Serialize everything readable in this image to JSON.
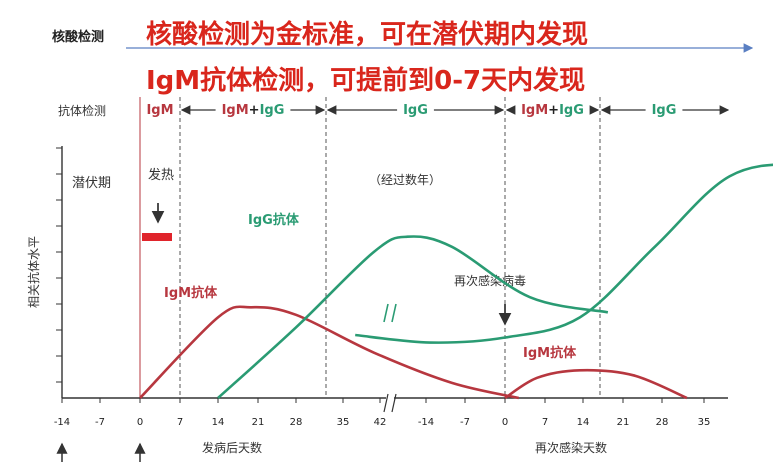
{
  "header": {
    "nucleic_label": "核酸检测",
    "title": "核酸检测为金标准，可在潜伏期内发现",
    "subtitle": "IgM抗体检测，可提前到0-7天内发现"
  },
  "colors": {
    "igm": "#b7373f",
    "igg": "#2a9b73",
    "title": "#d9261c",
    "axis": "#333333",
    "fever_bar": "#e0242b"
  },
  "chart_data": {
    "type": "line",
    "ylabel": "相关抗体水平",
    "row_label": "抗体检测",
    "phases": [
      {
        "label_parts": [
          {
            "text": "IgM",
            "series": "IgM"
          }
        ]
      },
      {
        "label_parts": [
          {
            "text": "IgM",
            "series": "IgM"
          },
          {
            "text": "+",
            "series": "none"
          },
          {
            "text": "IgG",
            "series": "IgG"
          }
        ]
      },
      {
        "label_parts": [
          {
            "text": "IgG",
            "series": "IgG"
          }
        ]
      },
      {
        "label_parts": [
          {
            "text": "IgM",
            "series": "IgM"
          },
          {
            "text": "+",
            "series": "none"
          },
          {
            "text": "IgG",
            "series": "IgG"
          }
        ]
      },
      {
        "label_parts": [
          {
            "text": "IgG",
            "series": "IgG"
          }
        ]
      }
    ],
    "annotations": {
      "latent": "潜伏期",
      "fever": "发热",
      "years": "（经过数年）",
      "reinfect": "再次感染病毒"
    },
    "series_labels": {
      "igg": "IgG抗体",
      "igm": "IgM抗体",
      "igm_second": "IgM抗体"
    },
    "x_ticks": [
      "-14",
      "-7",
      "0",
      "7",
      "14",
      "21",
      "28",
      "35",
      "42",
      "-14",
      "-7",
      "0",
      "7",
      "14",
      "21",
      "28",
      "35"
    ],
    "x_label_first": "发病后天数",
    "x_label_second": "再次感染天数",
    "series": [
      {
        "name": "IgM",
        "segment": "first",
        "points": [
          [
            0,
            0
          ],
          [
            7,
            0.32
          ],
          [
            10,
            0.36
          ],
          [
            14,
            0.33
          ],
          [
            21,
            0.18
          ],
          [
            28,
            0.06
          ],
          [
            34,
            0.0
          ]
        ]
      },
      {
        "name": "IgG",
        "segment": "first",
        "points": [
          [
            7,
            0
          ],
          [
            14,
            0.28
          ],
          [
            21,
            0.58
          ],
          [
            24,
            0.64
          ],
          [
            28,
            0.6
          ],
          [
            35,
            0.4
          ],
          [
            42,
            0.34
          ]
        ]
      },
      {
        "name": "IgG",
        "segment": "second",
        "points": [
          [
            -14,
            0.25
          ],
          [
            -7,
            0.22
          ],
          [
            0,
            0.24
          ],
          [
            7,
            0.32
          ],
          [
            14,
            0.6
          ],
          [
            21,
            0.88
          ],
          [
            28,
            0.93
          ],
          [
            35,
            0.91
          ],
          [
            39,
            0.88
          ]
        ]
      },
      {
        "name": "IgM",
        "segment": "second",
        "points": [
          [
            0,
            0
          ],
          [
            3,
            0.08
          ],
          [
            7,
            0.11
          ],
          [
            12,
            0.09
          ],
          [
            17,
            0.0
          ]
        ]
      }
    ]
  }
}
